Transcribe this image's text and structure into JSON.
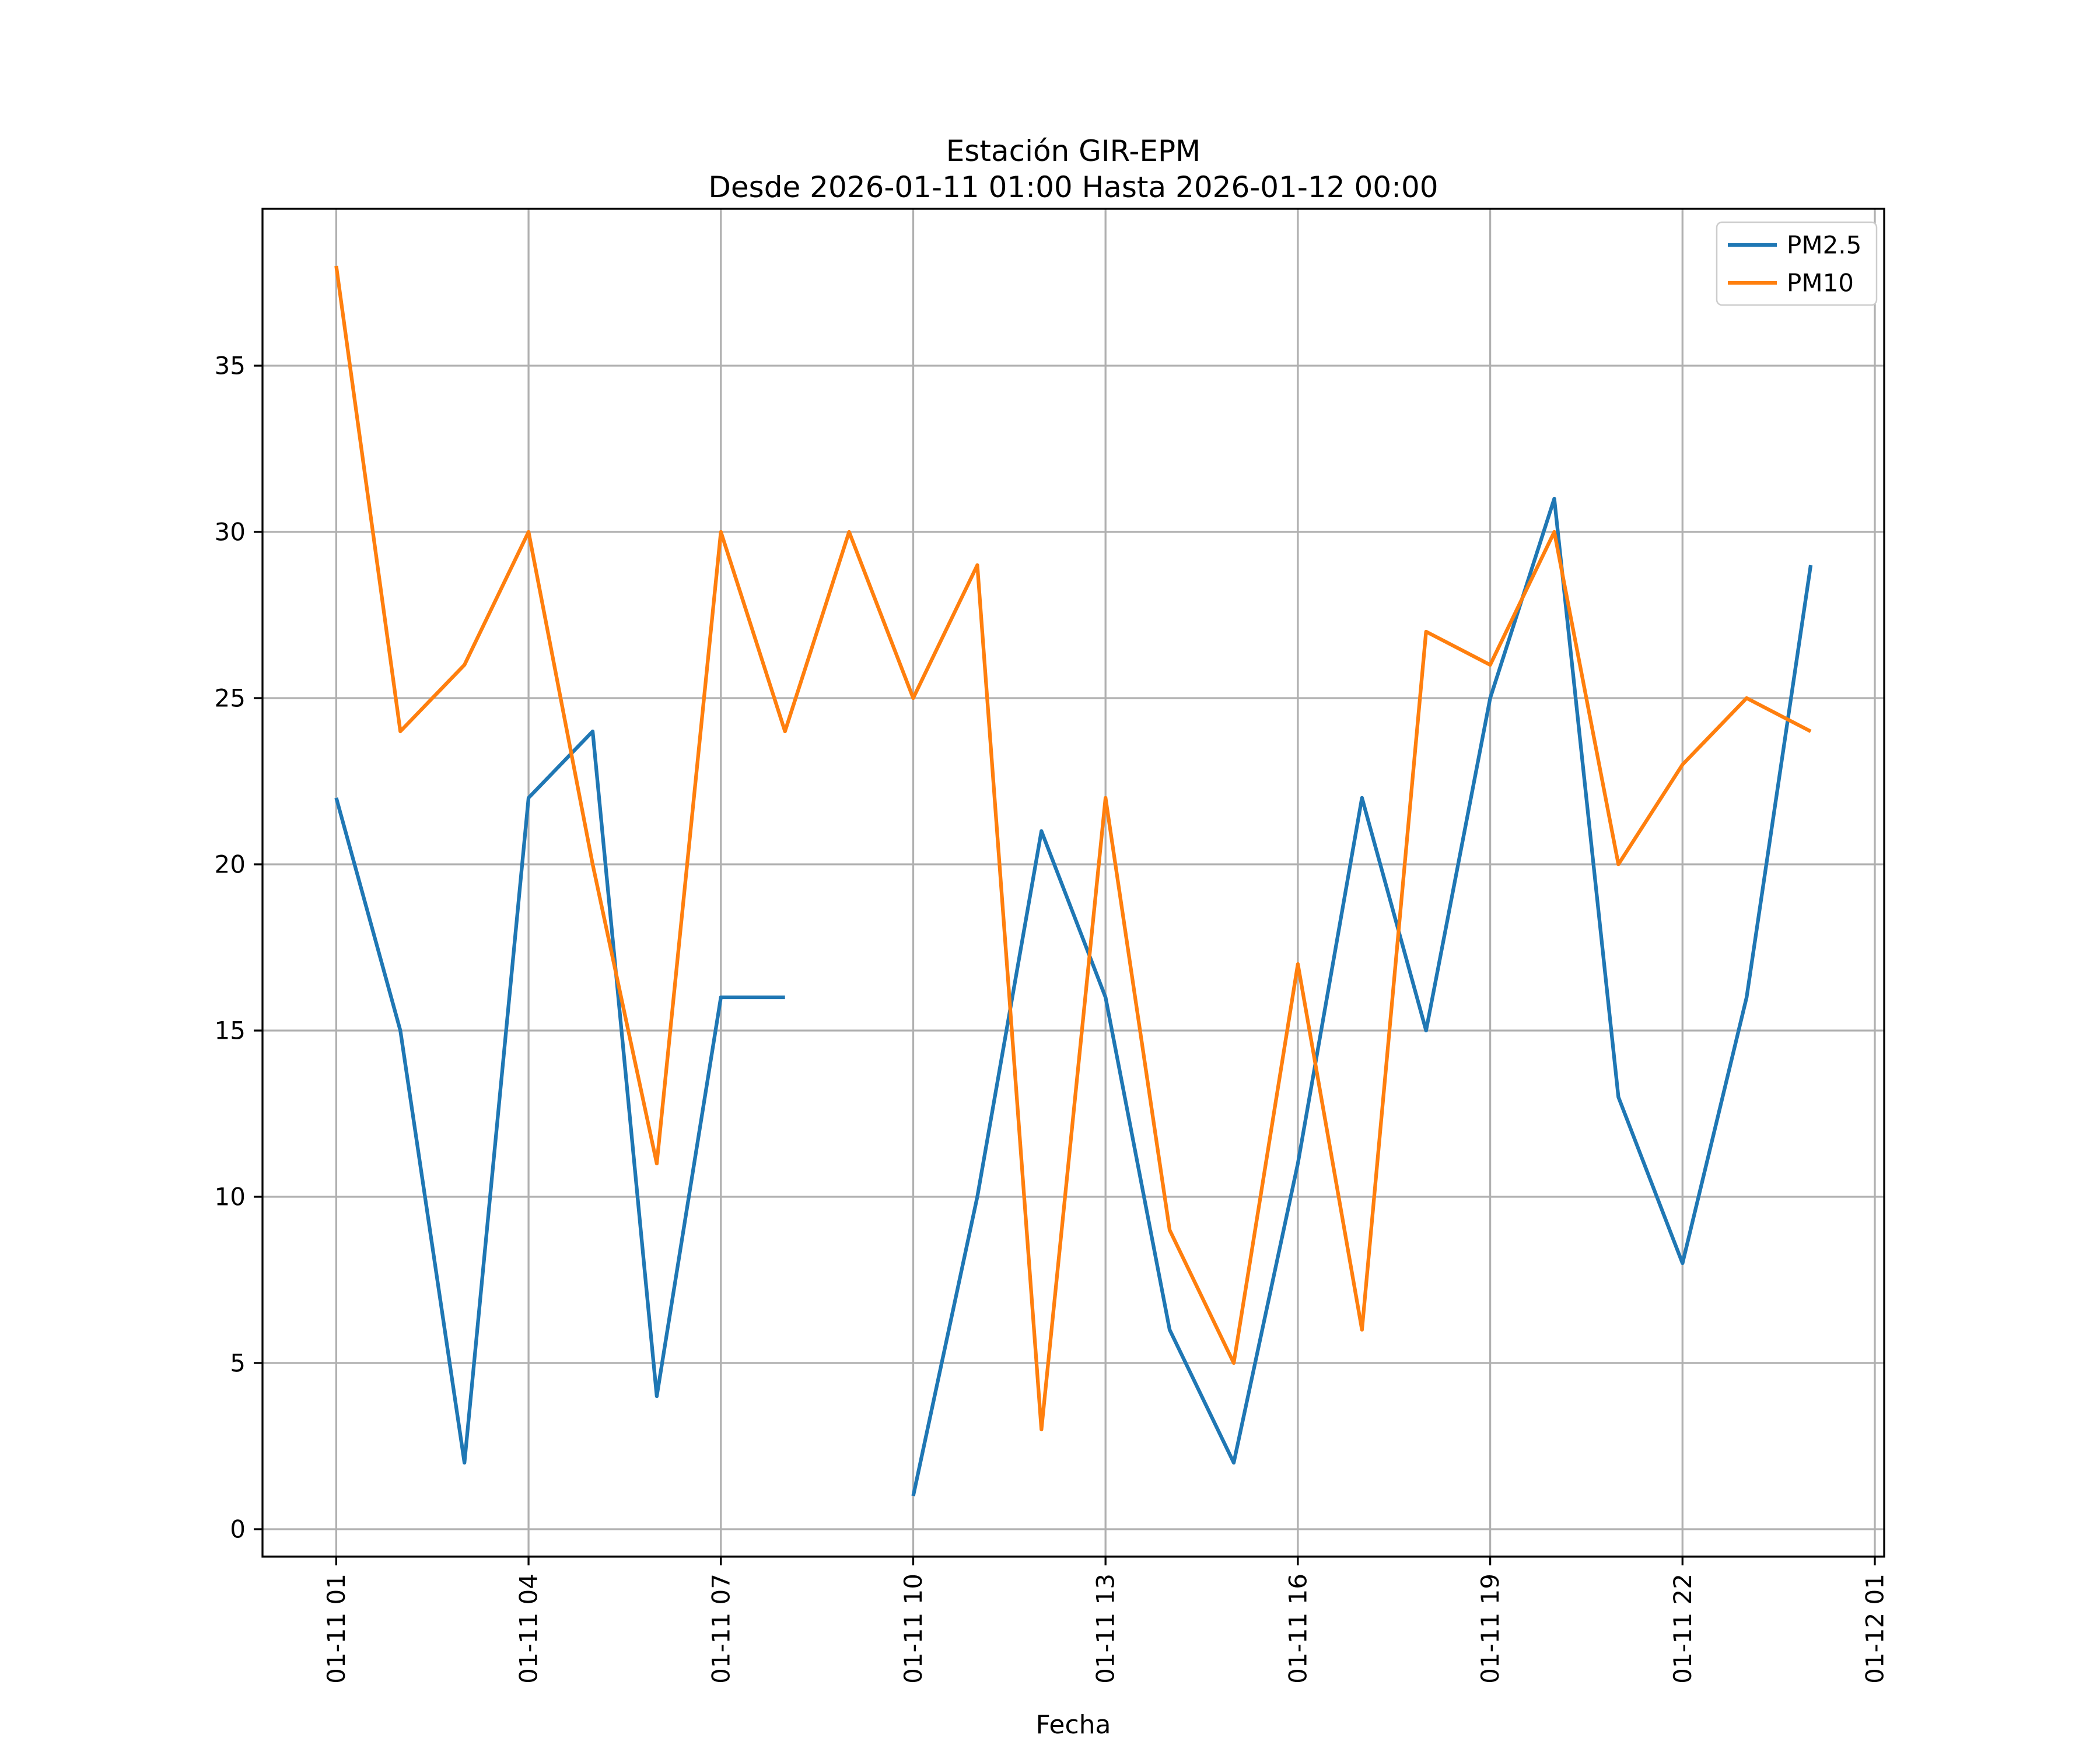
{
  "figure": {
    "title_line1": "Estación GIR-EPM",
    "title_line2": "Desde 2026-01-11 01:00 Hasta 2026-01-12 00:00",
    "xlabel": "Fecha"
  },
  "chart_data": {
    "type": "line",
    "station": "GIR-EPM",
    "x_hours": [
      1,
      2,
      3,
      4,
      5,
      6,
      7,
      8,
      9,
      10,
      11,
      12,
      13,
      14,
      15,
      16,
      17,
      18,
      19,
      20,
      21,
      22,
      23,
      24
    ],
    "x_tick_hours": [
      1,
      4,
      7,
      10,
      13,
      16,
      19,
      22,
      25
    ],
    "x_tick_labels": [
      "01-11 01",
      "01-11 04",
      "01-11 07",
      "01-11 10",
      "01-11 13",
      "01-11 16",
      "01-11 19",
      "01-11 22",
      "01-12 01"
    ],
    "y_ticks": [
      0,
      5,
      10,
      15,
      20,
      25,
      30,
      35
    ],
    "ylim": [
      -0.85,
      39.85
    ],
    "xlim_hours": [
      -0.15,
      25.15
    ],
    "grid": true,
    "grid_color": "#b0b0b0",
    "legend_position": "upper right",
    "xlabel": "Fecha",
    "ylabel": "",
    "series": [
      {
        "name": "PM2.5",
        "color": "#1f77b4",
        "values": [
          22,
          15,
          2,
          22,
          24,
          4,
          16,
          16,
          null,
          1,
          10,
          21,
          16,
          6,
          2,
          11,
          22,
          15,
          25,
          31,
          13,
          8,
          16,
          29
        ]
      },
      {
        "name": "PM10",
        "color": "#ff7f0e",
        "values": [
          38,
          24,
          26,
          30,
          20,
          11,
          30,
          24,
          30,
          25,
          29,
          3,
          22,
          9,
          5,
          17,
          6,
          27,
          26,
          30,
          20,
          23,
          25,
          24
        ]
      }
    ]
  }
}
